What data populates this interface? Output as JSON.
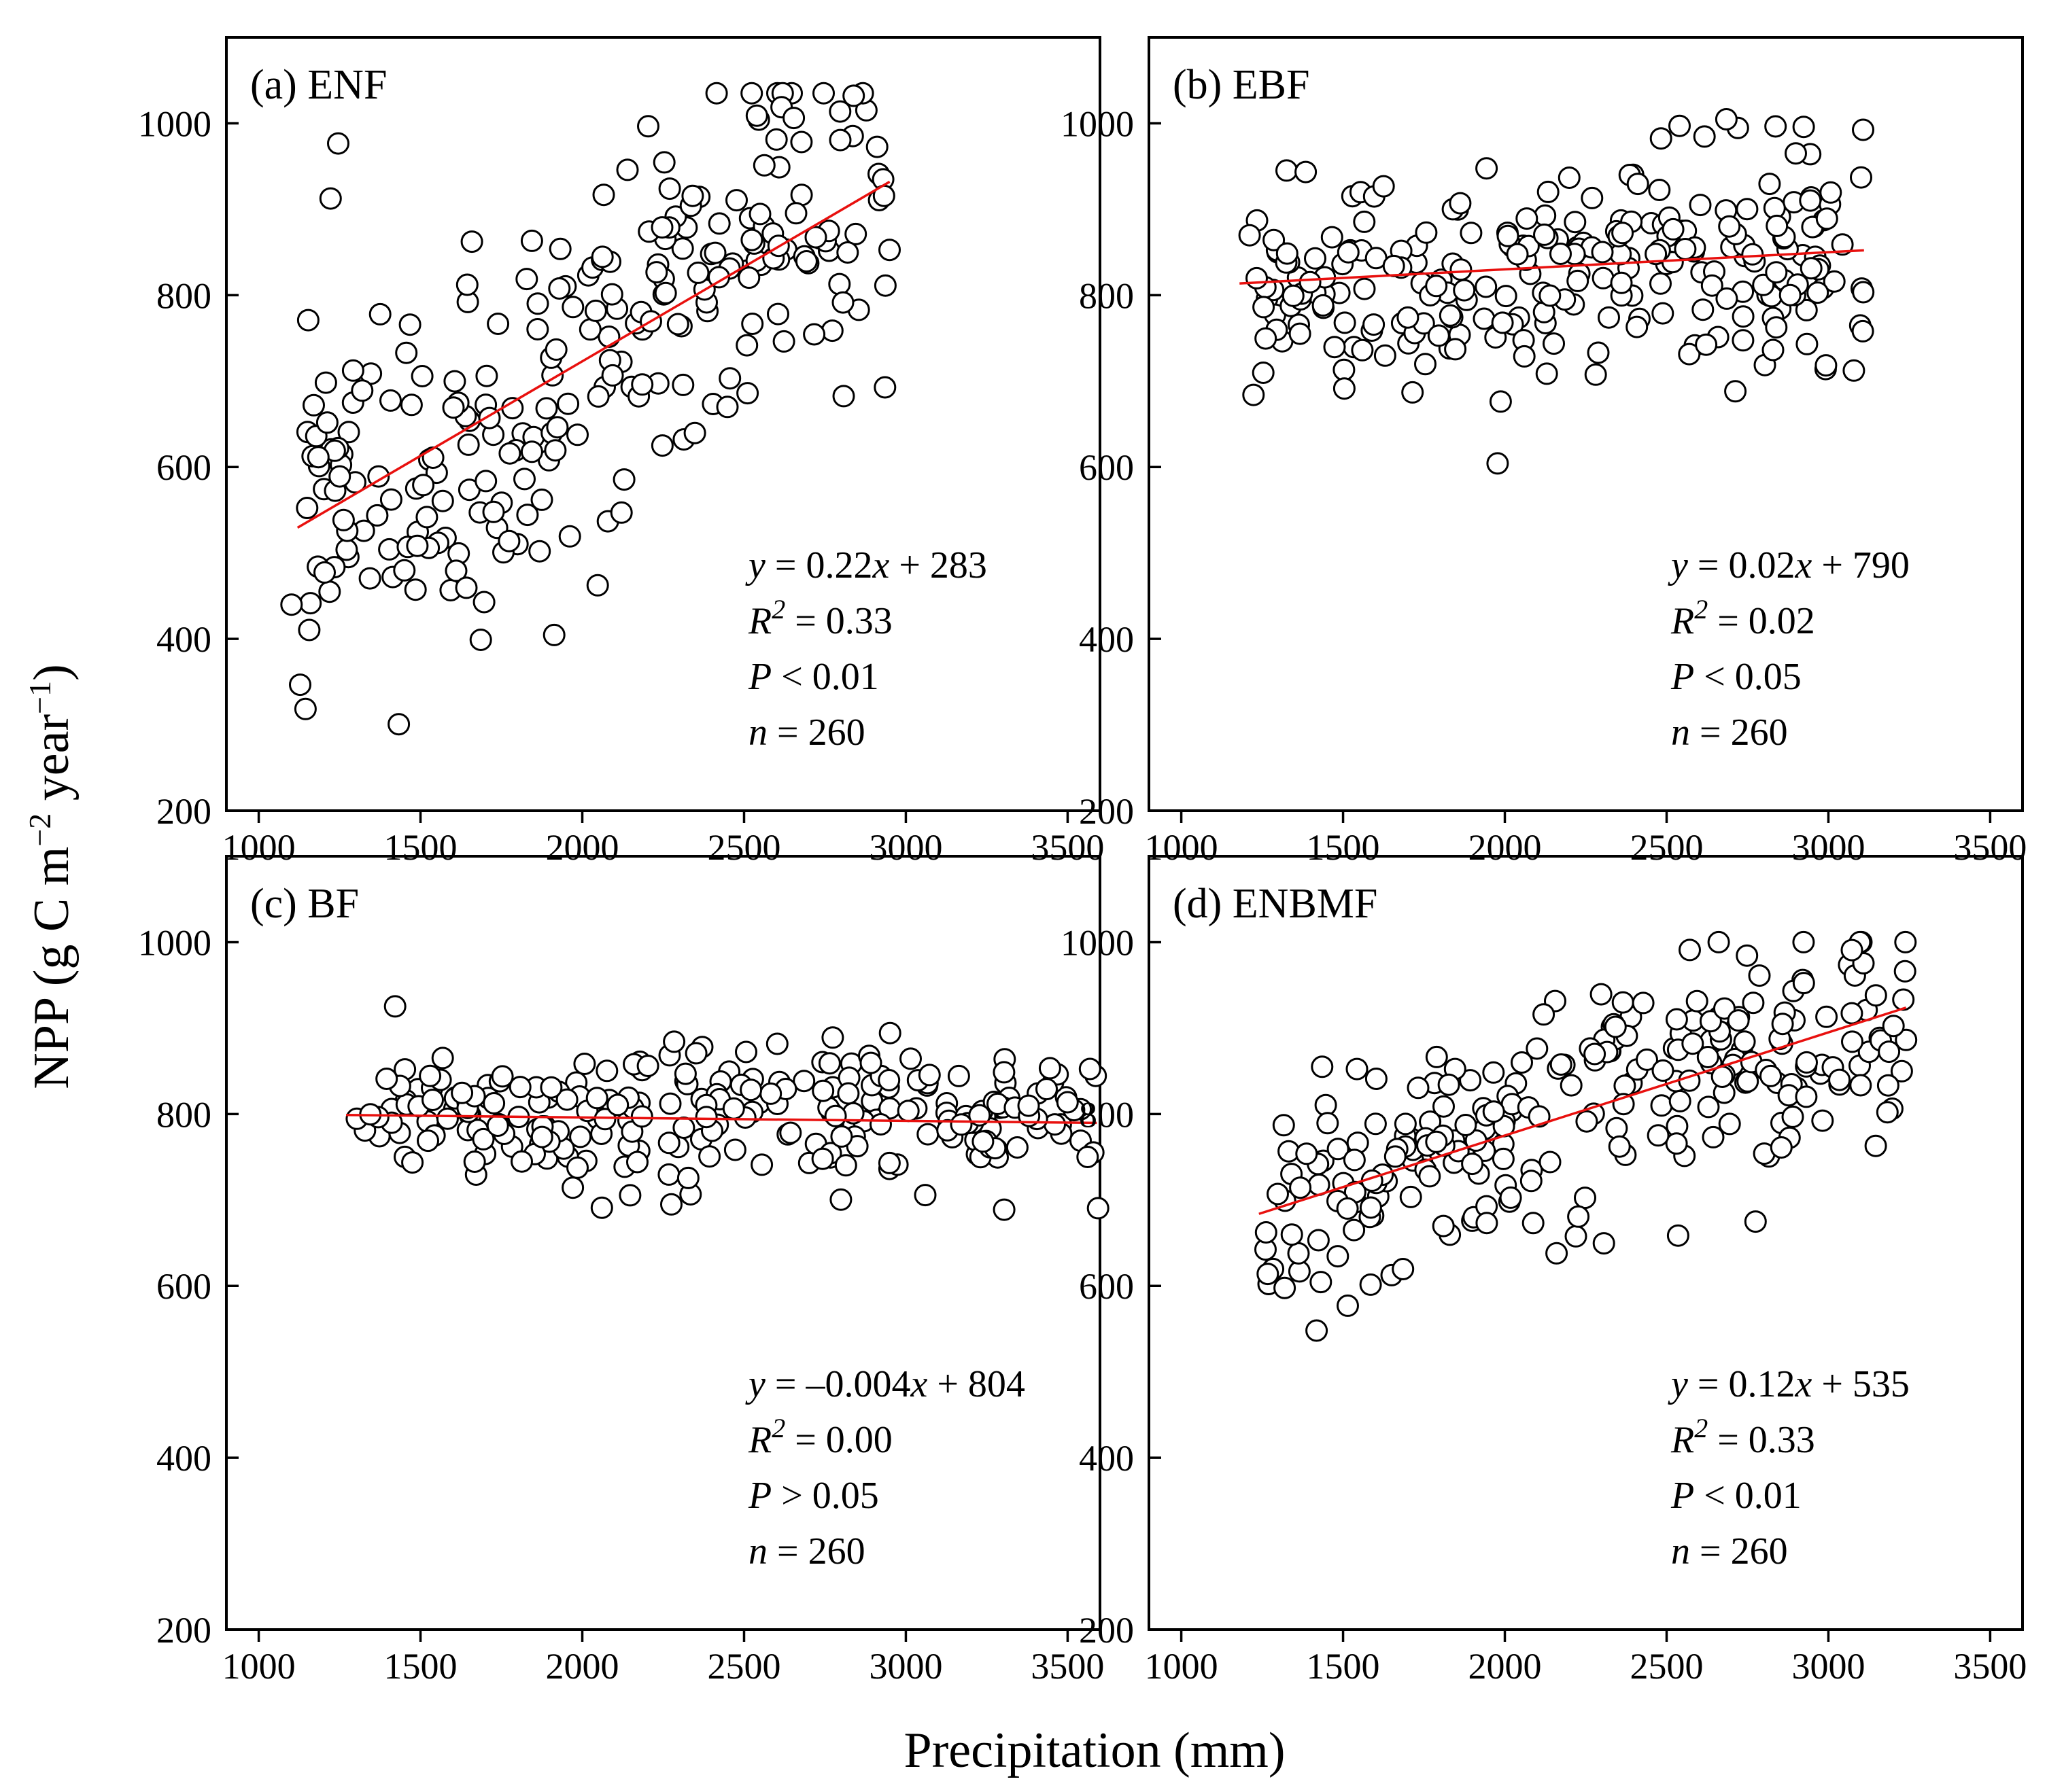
{
  "figure": {
    "ylabel": "NPP (g C m",
    "ylabel_sup1": "−2",
    "ylabel_mid": " year",
    "ylabel_sup2": "−1",
    "ylabel_end": ")",
    "xlabel": "Precipitation (mm)"
  },
  "chart_data": [
    {
      "type": "scatter",
      "id": "a",
      "title": "(a) ENF",
      "xlim": [
        900,
        3600
      ],
      "ylim": [
        200,
        1100
      ],
      "xticks": [
        1000,
        1500,
        2000,
        2500,
        3000,
        3500
      ],
      "yticks": [
        200,
        400,
        600,
        800,
        1000
      ],
      "fit": {
        "slope": 0.22,
        "intercept": 283,
        "x_range": [
          1120,
          2950
        ],
        "color": "#e8100e"
      },
      "stats": {
        "eq_prefix": "y",
        "eq_body": " = 0.22",
        "eq_x": "x",
        "eq_tail": " + 283",
        "r2_label": "R",
        "r2_value": " = 0.33",
        "p_label": "P",
        "p_value": " < 0.01",
        "n_label": "n",
        "n_value": " = 260"
      },
      "n": 260,
      "seed": 11,
      "x_range": [
        1100,
        2950
      ],
      "noise": 118,
      "y_min": 230,
      "y_max": 1035
    },
    {
      "type": "scatter",
      "id": "b",
      "title": "(b) EBF",
      "xlim": [
        900,
        3600
      ],
      "ylim": [
        200,
        1100
      ],
      "xticks": [
        1000,
        1500,
        2000,
        2500,
        3000,
        3500
      ],
      "yticks": [
        200,
        400,
        600,
        800,
        1000
      ],
      "fit": {
        "slope": 0.02,
        "intercept": 790,
        "x_range": [
          1180,
          3110
        ],
        "color": "#e8100e"
      },
      "stats": {
        "eq_prefix": "y",
        "eq_body": " = 0.02",
        "eq_x": "x",
        "eq_tail": " + 790",
        "r2_label": "R",
        "r2_value": " = 0.02",
        "p_label": "P",
        "p_value": " < 0.05",
        "n_label": "n",
        "n_value": " = 260"
      },
      "n": 260,
      "seed": 23,
      "x_range": [
        1200,
        3110
      ],
      "noise": 62,
      "y_min": 585,
      "y_max": 1010
    },
    {
      "type": "scatter",
      "id": "c",
      "title": "(c) BF",
      "xlim": [
        900,
        3600
      ],
      "ylim": [
        200,
        1100
      ],
      "xticks": [
        1000,
        1500,
        2000,
        2500,
        3000,
        3500
      ],
      "yticks": [
        200,
        400,
        600,
        800,
        1000
      ],
      "fit": {
        "slope": -0.004,
        "intercept": 804,
        "x_range": [
          1270,
          3590
        ],
        "color": "#e8100e"
      },
      "stats": {
        "eq_prefix": "y",
        "eq_body": " = –0.004",
        "eq_x": "x",
        "eq_tail": " + 804",
        "r2_label": "R",
        "r2_value": " = 0.00",
        "p_label": "P",
        "p_value": " > 0.05",
        "n_label": "n",
        "n_value": " = 260"
      },
      "n": 260,
      "seed": 37,
      "x_range": [
        1270,
        3600
      ],
      "noise": 42,
      "y_min": 675,
      "y_max": 930
    },
    {
      "type": "scatter",
      "id": "d",
      "title": "(d) ENBMF",
      "xlim": [
        900,
        3600
      ],
      "ylim": [
        200,
        1100
      ],
      "xticks": [
        1000,
        1500,
        2000,
        2500,
        3000,
        3500
      ],
      "yticks": [
        200,
        400,
        600,
        800,
        1000
      ],
      "fit": {
        "slope": 0.12,
        "intercept": 535,
        "x_range": [
          1240,
          3240
        ],
        "color": "#e8100e"
      },
      "stats": {
        "eq_prefix": "y",
        "eq_body": " = 0.12",
        "eq_x": "x",
        "eq_tail": " + 535",
        "r2_label": "R",
        "r2_value": " = 0.33",
        "p_label": "P",
        "p_value": " < 0.01",
        "n_label": "n",
        "n_value": " = 260"
      },
      "n": 260,
      "seed": 53,
      "x_range": [
        1240,
        3240
      ],
      "noise": 68,
      "y_min": 415,
      "y_max": 1000
    }
  ]
}
